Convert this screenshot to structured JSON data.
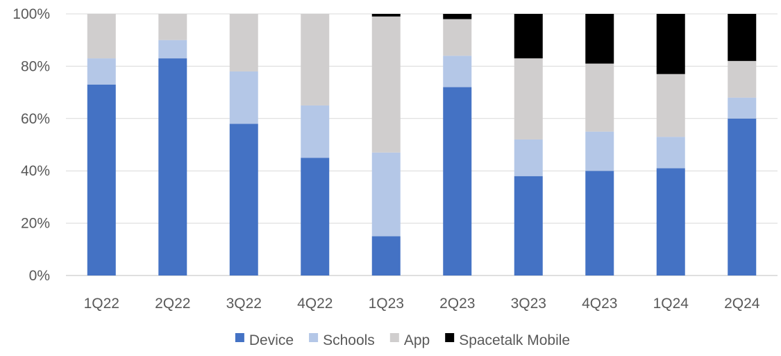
{
  "chart_data": {
    "type": "bar",
    "stacked": true,
    "categories": [
      "1Q22",
      "2Q22",
      "3Q22",
      "4Q22",
      "1Q23",
      "2Q23",
      "3Q23",
      "4Q23",
      "1Q24",
      "2Q24"
    ],
    "series": [
      {
        "name": "Device",
        "color": "#4472c4",
        "values": [
          73,
          83,
          58,
          45,
          15,
          72,
          38,
          40,
          41,
          60
        ]
      },
      {
        "name": "Schools",
        "color": "#b4c7e7",
        "values": [
          10,
          7,
          20,
          20,
          32,
          12,
          14,
          15,
          12,
          8
        ]
      },
      {
        "name": "App",
        "color": "#d0cece",
        "values": [
          17,
          10,
          22,
          35,
          52,
          14,
          31,
          26,
          24,
          14
        ]
      },
      {
        "name": "Spacetalk Mobile",
        "color": "#000000",
        "values": [
          0,
          0,
          0,
          0,
          1,
          2,
          17,
          19,
          23,
          18
        ]
      }
    ],
    "y_ticks": [
      "0%",
      "20%",
      "40%",
      "60%",
      "80%",
      "100%"
    ],
    "ylim": [
      0,
      100
    ],
    "grid": true,
    "legend_position": "bottom",
    "title": "",
    "xlabel": "",
    "ylabel": ""
  }
}
